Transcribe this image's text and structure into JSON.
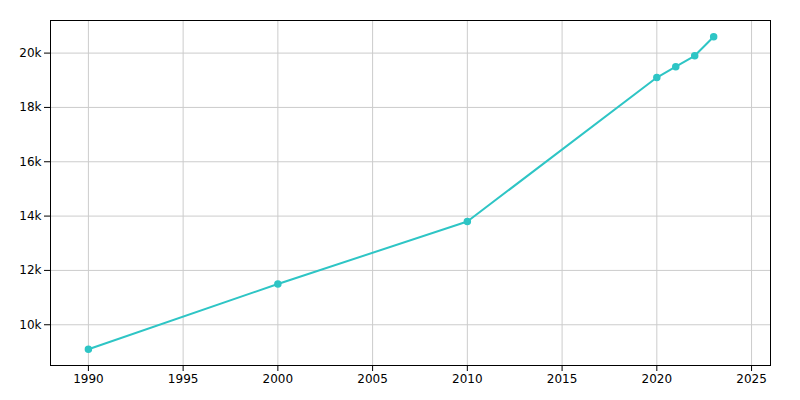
{
  "chart_data": {
    "type": "line",
    "x": [
      1990,
      2000,
      2010,
      2020,
      2021,
      2022,
      2023
    ],
    "values": [
      9100,
      11500,
      13800,
      19100,
      19500,
      19900,
      20600
    ],
    "color": "#2ec5c5",
    "marker": "circle",
    "xlim": [
      1988,
      2026
    ],
    "ylim": [
      8500,
      21200
    ],
    "xticks": [
      1990,
      1995,
      2000,
      2005,
      2010,
      2015,
      2020,
      2025
    ],
    "yticks": [
      {
        "value": 10000,
        "label": "10k"
      },
      {
        "value": 12000,
        "label": "12k"
      },
      {
        "value": 14000,
        "label": "14k"
      },
      {
        "value": 16000,
        "label": "16k"
      },
      {
        "value": 18000,
        "label": "18k"
      },
      {
        "value": 20000,
        "label": "20k"
      }
    ],
    "grid": true
  }
}
